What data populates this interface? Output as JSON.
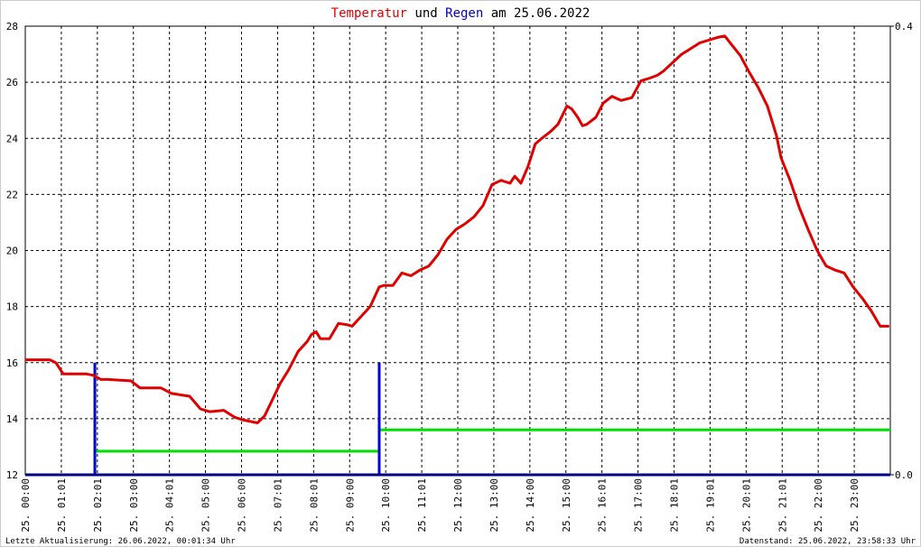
{
  "chart_data": {
    "type": "line",
    "title_parts": [
      "und",
      "am 25.06.2022"
    ],
    "footer_left": "Letzte Aktualisierung: 26.06.2022, 00:01:34 Uhr",
    "footer_right": "Datenstand: 25.06.2022, 23:58:33 Uhr",
    "xlim": [
      0,
      24
    ],
    "xticks": [
      {
        "value": 0,
        "label": "25. 00:00"
      },
      {
        "value": 1,
        "label": "25. 01:01"
      },
      {
        "value": 2,
        "label": "25. 02:01"
      },
      {
        "value": 3,
        "label": "25. 03:00"
      },
      {
        "value": 4,
        "label": "25. 04:01"
      },
      {
        "value": 5,
        "label": "25. 05:00"
      },
      {
        "value": 6,
        "label": "25. 06:00"
      },
      {
        "value": 7,
        "label": "25. 07:01"
      },
      {
        "value": 8,
        "label": "25. 08:01"
      },
      {
        "value": 9,
        "label": "25. 09:00"
      },
      {
        "value": 10,
        "label": "25. 10:00"
      },
      {
        "value": 11,
        "label": "25. 11:01"
      },
      {
        "value": 12,
        "label": "25. 12:00"
      },
      {
        "value": 13,
        "label": "25. 13:00"
      },
      {
        "value": 14,
        "label": "25. 14:00"
      },
      {
        "value": 15,
        "label": "25. 15:00"
      },
      {
        "value": 16,
        "label": "25. 16:01"
      },
      {
        "value": 17,
        "label": "25. 17:00"
      },
      {
        "value": 18,
        "label": "25. 18:01"
      },
      {
        "value": 19,
        "label": "25. 19:01"
      },
      {
        "value": 20,
        "label": "25. 20:01"
      },
      {
        "value": 21,
        "label": "25. 21:01"
      },
      {
        "value": 22,
        "label": "25. 22:00"
      },
      {
        "value": 23,
        "label": "25. 23:00"
      }
    ],
    "ylim": [
      12,
      28
    ],
    "yticks": [
      12,
      14,
      16,
      18,
      20,
      22,
      24,
      26,
      28
    ],
    "y2lim": [
      0,
      0.4
    ],
    "y2ticks": [
      {
        "value": 0,
        "label": "0.0"
      },
      {
        "value": 0.4,
        "label": "0.4"
      }
    ],
    "grid": true,
    "series": [
      {
        "name": "Temperatur",
        "color": "#e00000",
        "type": "line",
        "x": [
          0,
          0.68,
          0.85,
          1.05,
          1.68,
          1.88,
          2.1,
          2.3,
          2.93,
          3.18,
          3.76,
          4.06,
          4.56,
          4.86,
          5.11,
          5.51,
          5.81,
          6.06,
          6.44,
          6.64,
          6.81,
          7.07,
          7.31,
          7.57,
          7.82,
          7.94,
          8.07,
          8.19,
          8.44,
          8.69,
          8.94,
          9.07,
          9.32,
          9.57,
          9.82,
          9.94,
          10.2,
          10.45,
          10.7,
          10.95,
          11.2,
          11.45,
          11.7,
          11.95,
          12.2,
          12.45,
          12.7,
          12.95,
          13.2,
          13.45,
          13.58,
          13.75,
          13.95,
          14.15,
          14.33,
          14.58,
          14.78,
          15.03,
          15.16,
          15.33,
          15.46,
          15.58,
          15.83,
          16.03,
          16.28,
          16.53,
          16.83,
          17.08,
          17.33,
          17.54,
          17.71,
          17.96,
          18.21,
          18.46,
          18.71,
          18.96,
          19.21,
          19.41,
          19.59,
          19.84,
          20.09,
          20.34,
          20.59,
          20.84,
          20.97,
          21.22,
          21.47,
          21.72,
          21.97,
          22.22,
          22.47,
          22.72,
          22.97,
          23.22,
          23.47,
          23.72,
          23.97
        ],
        "values": [
          16.1,
          16.1,
          16.0,
          15.6,
          15.6,
          15.55,
          15.4,
          15.4,
          15.35,
          15.1,
          15.1,
          14.9,
          14.8,
          14.35,
          14.25,
          14.3,
          14.05,
          13.95,
          13.85,
          14.1,
          14.55,
          15.25,
          15.75,
          16.4,
          16.75,
          17.0,
          17.1,
          16.85,
          16.85,
          17.4,
          17.35,
          17.3,
          17.65,
          18.0,
          18.7,
          18.75,
          18.75,
          19.2,
          19.1,
          19.3,
          19.45,
          19.85,
          20.4,
          20.75,
          20.95,
          21.2,
          21.6,
          22.35,
          22.5,
          22.4,
          22.65,
          22.4,
          23.0,
          23.8,
          24.0,
          24.25,
          24.5,
          25.15,
          25.05,
          24.75,
          24.45,
          24.5,
          24.75,
          25.25,
          25.5,
          25.35,
          25.45,
          26.05,
          26.15,
          26.25,
          26.4,
          26.7,
          27.0,
          27.2,
          27.4,
          27.5,
          27.6,
          27.65,
          27.35,
          26.95,
          26.35,
          25.8,
          25.15,
          24.1,
          23.3,
          22.5,
          21.55,
          20.75,
          20.0,
          19.45,
          19.3,
          19.2,
          18.7,
          18.3,
          17.85,
          17.3,
          17.3
        ]
      },
      {
        "name": "Regen",
        "color": "#0000cc",
        "type": "bar",
        "axis": "y2",
        "x": [
          1.93,
          9.82
        ],
        "values": [
          0.1,
          0.1
        ]
      },
      {
        "color": "#00e000",
        "type": "line",
        "axis": "y2",
        "x": [
          1.93,
          9.82,
          null,
          9.82,
          24
        ],
        "values": [
          0.021,
          0.021,
          null,
          0.04,
          0.04
        ]
      }
    ]
  }
}
